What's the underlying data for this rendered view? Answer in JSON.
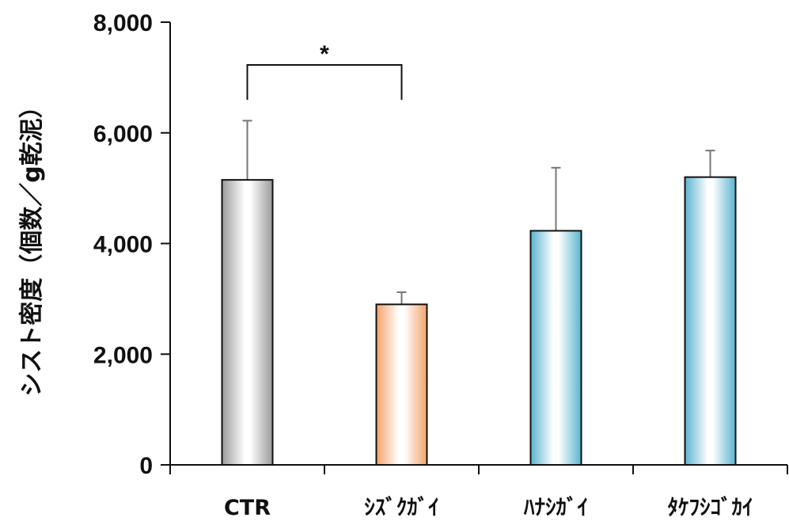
{
  "chart_data": {
    "type": "bar",
    "categories": [
      "CTR",
      "シズクガイ",
      "ハナシガイ",
      "タケフシゴカイ"
    ],
    "category_labels": [
      "CTR",
      "ｼｽﾞｸｶﾞｲ",
      "ﾊﾅｼｶﾞｲ",
      "ﾀｹﾌｼｺﾞｶｲ"
    ],
    "values": [
      5150,
      2900,
      4230,
      5200
    ],
    "error_bars": [
      1070,
      220,
      1140,
      480
    ],
    "bar_colors": [
      "#9a9a9a",
      "#f4a36b",
      "#5ab4d0",
      "#5ab4d0"
    ],
    "ylabel": "シスト密度（個数／g乾泥）",
    "ylim": [
      0,
      8000
    ],
    "yticks": [
      0,
      2000,
      4000,
      6000,
      8000
    ],
    "ytick_labels": [
      "0",
      "2,000",
      "4,000",
      "6,000",
      "8,000"
    ],
    "grid": false,
    "significance": {
      "from": 0,
      "to": 1,
      "label": "*"
    }
  }
}
